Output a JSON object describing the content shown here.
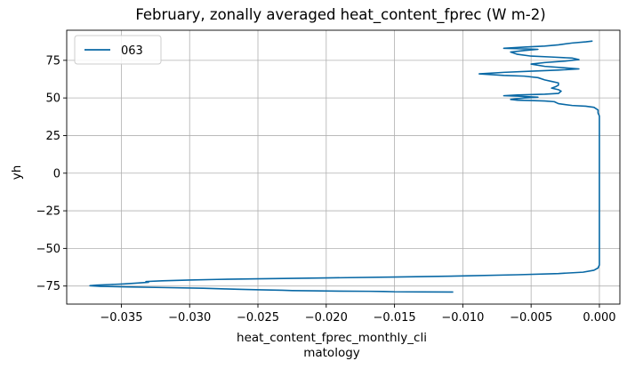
{
  "chart_data": {
    "type": "line",
    "title": "February, zonally averaged heat_content_fprec (W m-2)",
    "xlabel_lines": [
      "heat_content_fprec_monthly_cli",
      "matology"
    ],
    "ylabel": "yh",
    "xlim": [
      -0.039,
      0.0015
    ],
    "ylim": [
      -87,
      95
    ],
    "xticks": [
      -0.035,
      -0.03,
      -0.025,
      -0.02,
      -0.015,
      -0.01,
      -0.005,
      0.0
    ],
    "xtick_labels": [
      "−0.035",
      "−0.030",
      "−0.025",
      "−0.020",
      "−0.015",
      "−0.010",
      "−0.005",
      "0.000"
    ],
    "yticks": [
      -75,
      -50,
      -25,
      0,
      25,
      50,
      75
    ],
    "ytick_labels": [
      "−75",
      "−50",
      "−25",
      "0",
      "25",
      "50",
      "75"
    ],
    "grid": true,
    "legend_position": "top-left",
    "series": [
      {
        "name": "063",
        "color": "#0868a5",
        "points": [
          [
            -0.0107,
            -79.0
          ],
          [
            -0.013,
            -78.9
          ],
          [
            -0.015,
            -78.8
          ],
          [
            -0.0158,
            -78.6
          ],
          [
            -0.0168,
            -78.5
          ],
          [
            -0.019,
            -78.4
          ],
          [
            -0.021,
            -78.2
          ],
          [
            -0.0225,
            -78.0
          ],
          [
            -0.0232,
            -77.8
          ],
          [
            -0.0248,
            -77.5
          ],
          [
            -0.0262,
            -77.2
          ],
          [
            -0.0274,
            -76.9
          ],
          [
            -0.029,
            -76.5
          ],
          [
            -0.032,
            -76.0
          ],
          [
            -0.0345,
            -75.6
          ],
          [
            -0.0365,
            -75.2
          ],
          [
            -0.0373,
            -74.8
          ],
          [
            -0.0368,
            -74.4
          ],
          [
            -0.0358,
            -74.0
          ],
          [
            -0.0348,
            -73.6
          ],
          [
            -0.0338,
            -73.0
          ],
          [
            -0.033,
            -72.5
          ],
          [
            -0.0332,
            -72.0
          ],
          [
            -0.032,
            -71.5
          ],
          [
            -0.03,
            -71.0
          ],
          [
            -0.028,
            -70.6
          ],
          [
            -0.025,
            -70.2
          ],
          [
            -0.02,
            -69.6
          ],
          [
            -0.015,
            -69.0
          ],
          [
            -0.01,
            -68.3
          ],
          [
            -0.006,
            -67.5
          ],
          [
            -0.003,
            -66.7
          ],
          [
            -0.0012,
            -65.8
          ],
          [
            -0.0004,
            -64.5
          ],
          [
            -0.0001,
            -63.0
          ],
          [
            0.0,
            -61.0
          ],
          [
            0.0,
            -40.0
          ],
          [
            0.0,
            0.0
          ],
          [
            0.0,
            25.0
          ],
          [
            0.0,
            38.0
          ],
          [
            -0.0001,
            40.0
          ],
          [
            -0.0001,
            42.0
          ],
          [
            -0.0004,
            43.8
          ],
          [
            -0.001,
            44.5
          ],
          [
            -0.002,
            45.0
          ],
          [
            -0.003,
            46.2
          ],
          [
            -0.0033,
            47.5
          ],
          [
            -0.004,
            48.0
          ],
          [
            -0.005,
            48.3
          ],
          [
            -0.006,
            48.5
          ],
          [
            -0.0065,
            49.0
          ],
          [
            -0.0055,
            50.0
          ],
          [
            -0.0045,
            50.5
          ],
          [
            -0.006,
            51.2
          ],
          [
            -0.007,
            51.5
          ],
          [
            -0.006,
            52.0
          ],
          [
            -0.004,
            52.5
          ],
          [
            -0.003,
            53.0
          ],
          [
            -0.0028,
            54.5
          ],
          [
            -0.003,
            55.5
          ],
          [
            -0.0035,
            56.5
          ],
          [
            -0.0032,
            57.5
          ],
          [
            -0.003,
            58.5
          ],
          [
            -0.003,
            60.0
          ],
          [
            -0.0035,
            61.0
          ],
          [
            -0.004,
            62.0
          ],
          [
            -0.0045,
            63.5
          ],
          [
            -0.0055,
            64.5
          ],
          [
            -0.007,
            65.0
          ],
          [
            -0.0088,
            66.0
          ],
          [
            -0.007,
            67.0
          ],
          [
            -0.005,
            67.8
          ],
          [
            -0.003,
            68.5
          ],
          [
            -0.0015,
            69.3
          ],
          [
            -0.0025,
            70.0
          ],
          [
            -0.004,
            71.0
          ],
          [
            -0.005,
            72.5
          ],
          [
            -0.004,
            73.5
          ],
          [
            -0.0025,
            74.5
          ],
          [
            -0.0015,
            75.5
          ],
          [
            -0.002,
            76.5
          ],
          [
            -0.0035,
            77.2
          ],
          [
            -0.005,
            77.8
          ],
          [
            -0.006,
            79.0
          ],
          [
            -0.0065,
            80.5
          ],
          [
            -0.0055,
            81.5
          ],
          [
            -0.0045,
            82.3
          ],
          [
            -0.006,
            82.8
          ],
          [
            -0.007,
            83.0
          ],
          [
            -0.0055,
            83.8
          ],
          [
            -0.004,
            84.5
          ],
          [
            -0.003,
            85.3
          ],
          [
            -0.002,
            86.5
          ],
          [
            -0.001,
            87.3
          ],
          [
            -0.0005,
            87.8
          ]
        ]
      }
    ]
  }
}
